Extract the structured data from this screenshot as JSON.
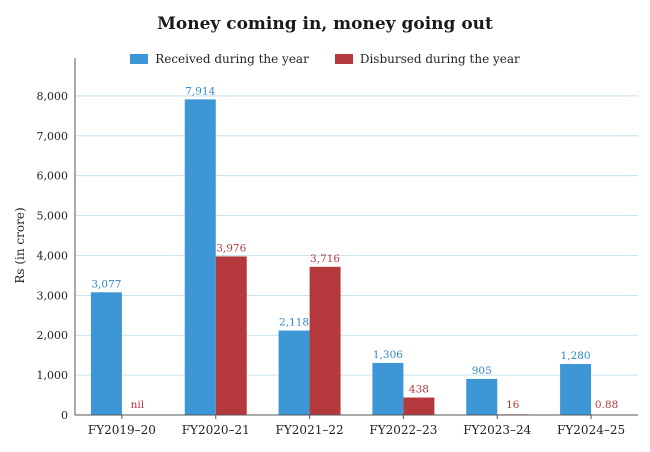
{
  "chart_data": {
    "type": "bar",
    "title": "Money coming in, money going out",
    "ylabel": "Rs (in crore)",
    "xlabel": "",
    "ylim": [
      0,
      8500
    ],
    "yticks": [
      0,
      1000,
      2000,
      3000,
      4000,
      5000,
      6000,
      7000,
      8000
    ],
    "ytick_labels": [
      "0",
      "1,000",
      "2,000",
      "3,000",
      "4,000",
      "5,000",
      "6,000",
      "7,000",
      "8,000"
    ],
    "grid": true,
    "legend_position": "top-center",
    "categories": [
      "FY2019–20",
      "FY2020–21",
      "FY2021–22",
      "FY2022–23",
      "FY2023–24",
      "FY2024–25"
    ],
    "series": [
      {
        "name": "Received during the year",
        "color": "#3d96d6",
        "label_color": "#2f86c8",
        "values": [
          3077,
          7914,
          2118,
          1306,
          905,
          1280
        ],
        "labels": [
          "3,077",
          "7,914",
          "2,118",
          "1,306",
          "905",
          "1,280"
        ]
      },
      {
        "name": "Disbursed during the year",
        "color": "#b5383d",
        "label_color": "#b5383d",
        "values": [
          0,
          3976,
          3716,
          438,
          16,
          0.88
        ],
        "labels": [
          "nil",
          "3,976",
          "3,716",
          "438",
          "16",
          "0.88"
        ]
      }
    ]
  }
}
